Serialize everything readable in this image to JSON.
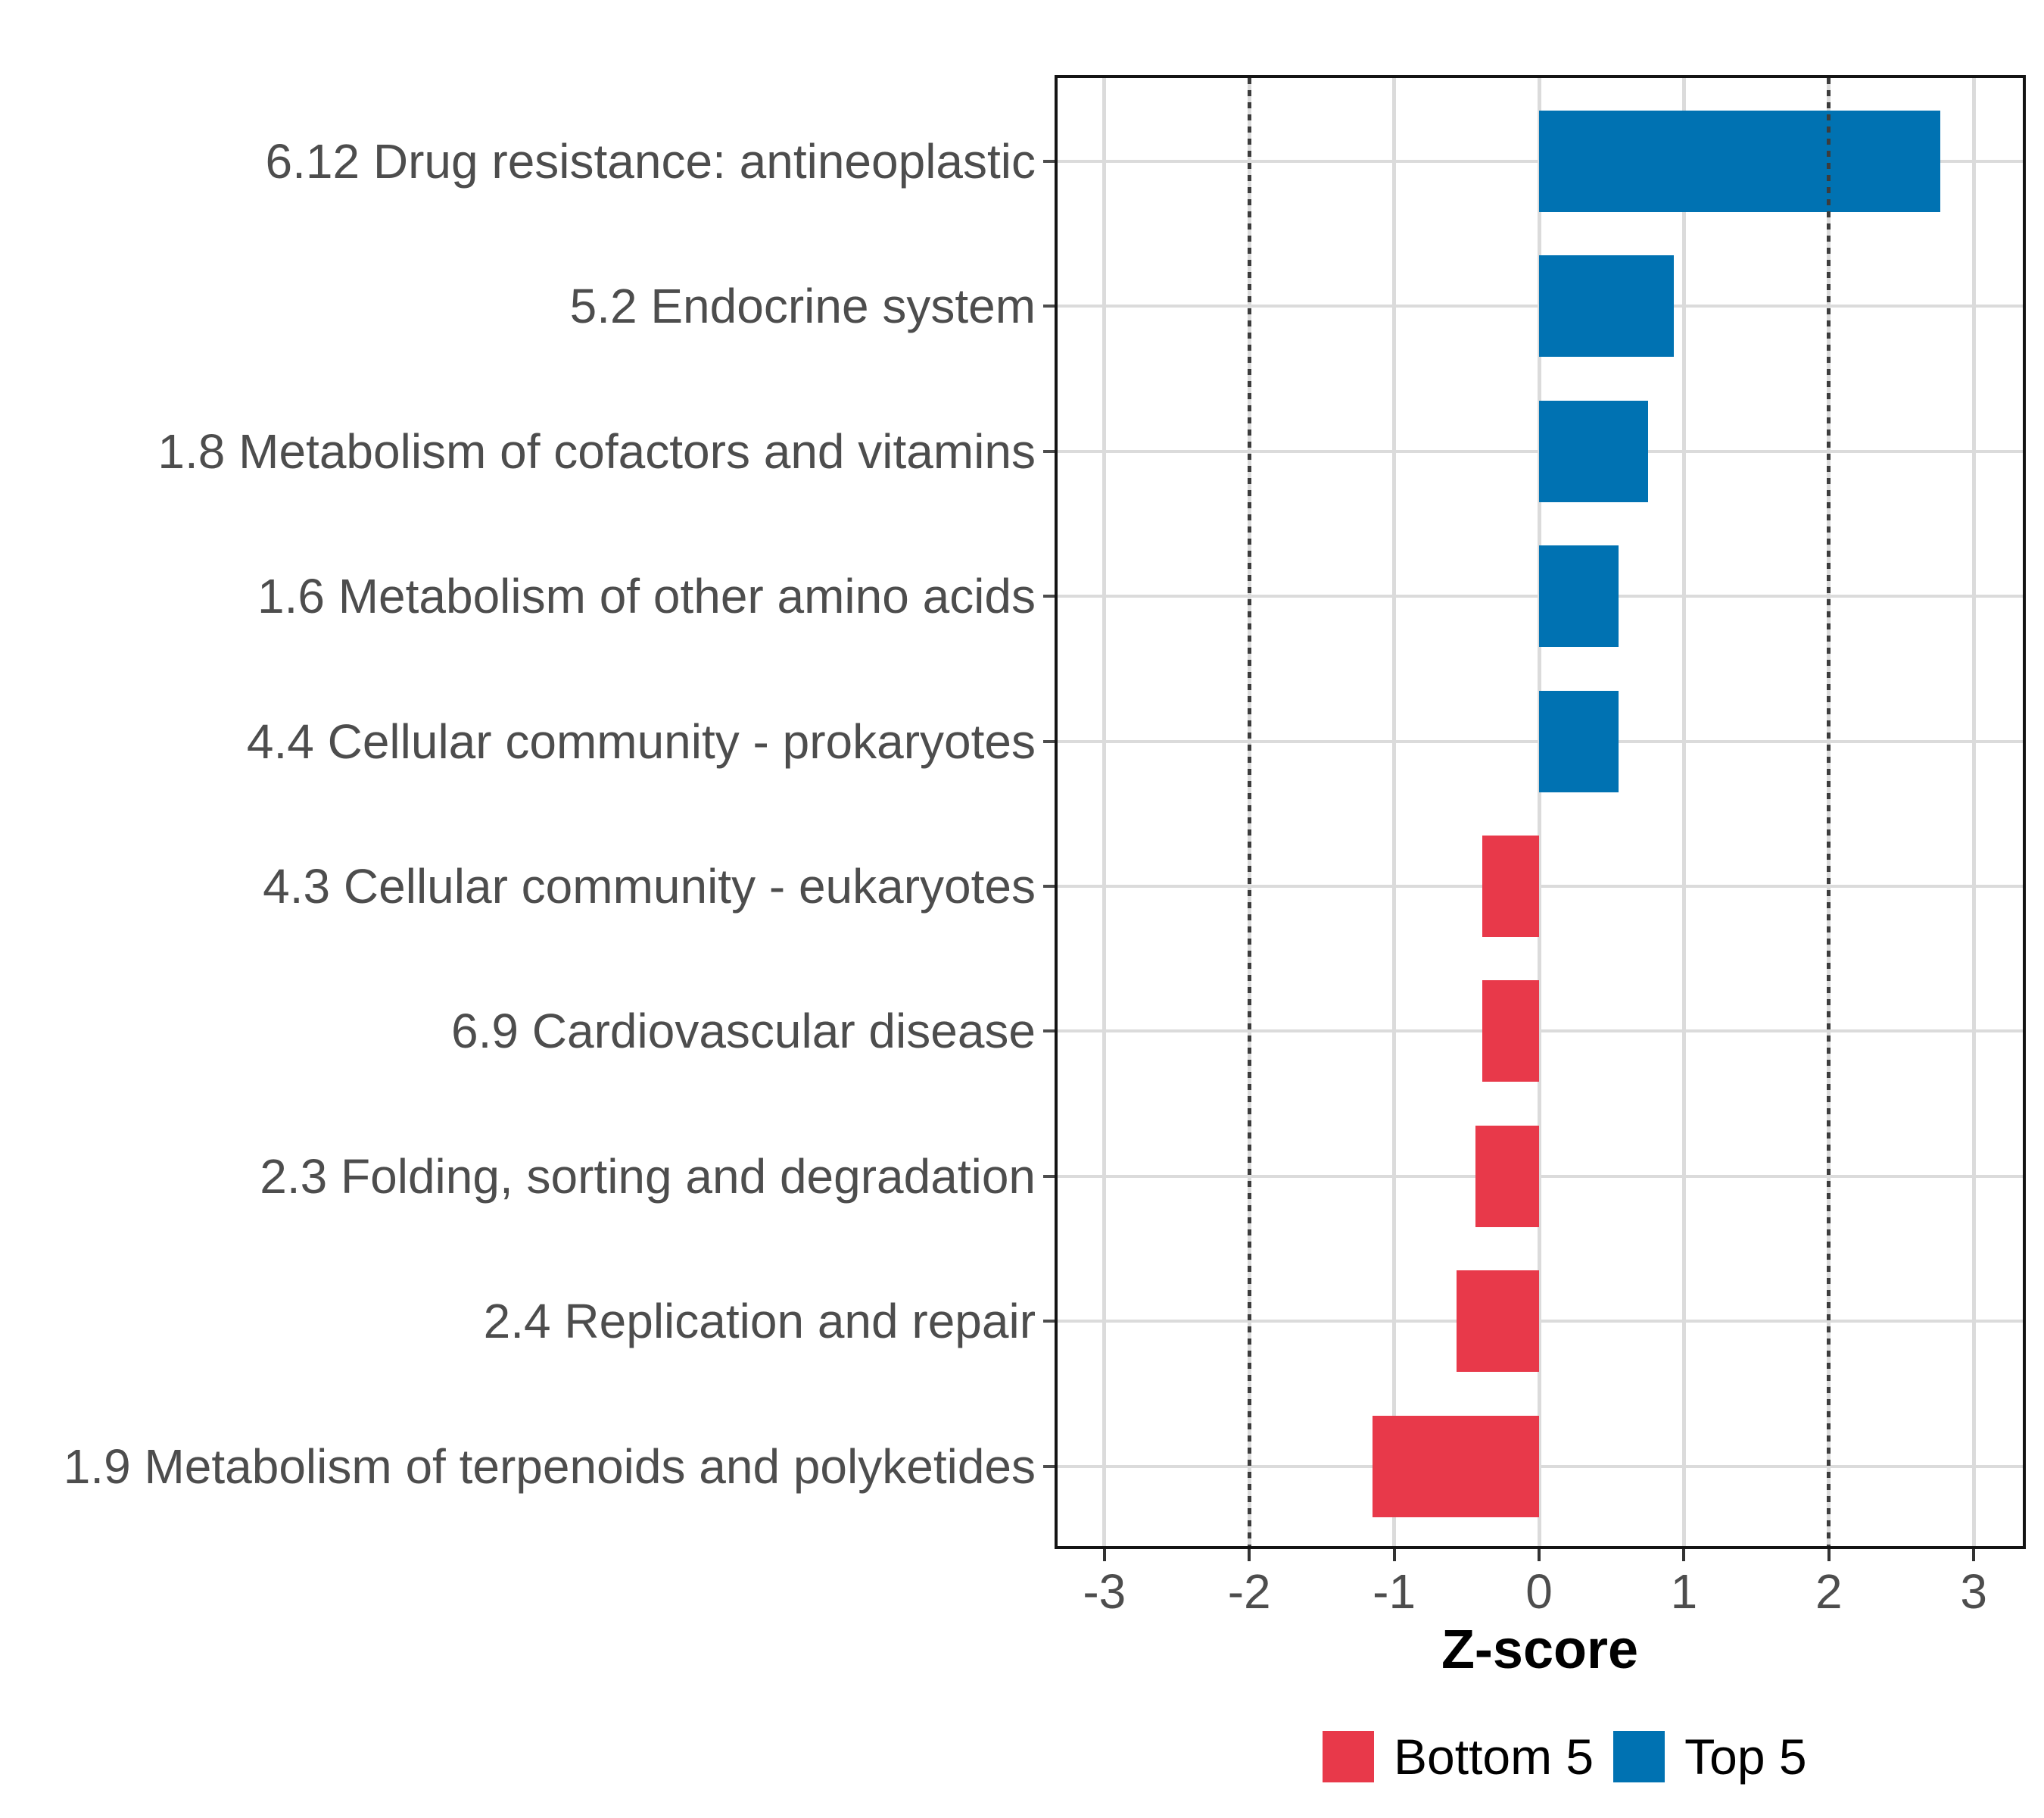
{
  "chart_data": {
    "type": "bar",
    "orientation": "horizontal",
    "xlabel": "Z-score",
    "categories": [
      "6.12 Drug resistance: antineoplastic",
      "5.2 Endocrine system",
      "1.8 Metabolism of cofactors and vitamins",
      "1.6 Metabolism of other amino acids",
      "4.4 Cellular community - prokaryotes",
      "4.3 Cellular community - eukaryotes",
      "6.9 Cardiovascular disease",
      "2.3 Folding, sorting and degradation",
      "2.4 Replication and repair",
      "1.9 Metabolism of terpenoids and polyketides"
    ],
    "values": [
      2.77,
      0.93,
      0.75,
      0.55,
      0.55,
      -0.39,
      -0.39,
      -0.44,
      -0.57,
      -1.15
    ],
    "groups": [
      "Top 5",
      "Top 5",
      "Top 5",
      "Top 5",
      "Top 5",
      "Bottom 5",
      "Bottom 5",
      "Bottom 5",
      "Bottom 5",
      "Bottom 5"
    ],
    "group_colors": {
      "Top 5": "#0072B2",
      "Bottom 5": "#E8394A"
    },
    "x_ticks": [
      -3,
      -2,
      -1,
      0,
      1,
      2,
      3
    ],
    "xlim": [
      -3.35,
      3.36
    ],
    "reference_lines": [
      -2,
      2
    ],
    "grid": true,
    "legend_position": "bottom",
    "legend": [
      {
        "label": "Bottom 5",
        "color": "#E8394A"
      },
      {
        "label": "Top 5",
        "color": "#0072B2"
      }
    ],
    "style_colors": {
      "grid": "#dbdbdb",
      "reference_line": "#3c3c3c",
      "axis_text": "#4d4d4d",
      "panel_border": "#141414"
    }
  }
}
